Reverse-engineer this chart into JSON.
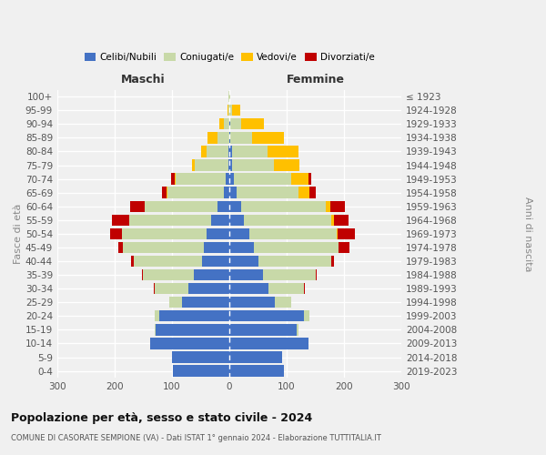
{
  "age_groups_bottom_to_top": [
    "0-4",
    "5-9",
    "10-14",
    "15-19",
    "20-24",
    "25-29",
    "30-34",
    "35-39",
    "40-44",
    "45-49",
    "50-54",
    "55-59",
    "60-64",
    "65-69",
    "70-74",
    "75-79",
    "80-84",
    "85-89",
    "90-94",
    "95-99",
    "100+"
  ],
  "birth_years_bottom_to_top": [
    "2019-2023",
    "2014-2018",
    "2009-2013",
    "2004-2008",
    "1999-2003",
    "1994-1998",
    "1989-1993",
    "1984-1988",
    "1979-1983",
    "1974-1978",
    "1969-1973",
    "1964-1968",
    "1959-1963",
    "1954-1958",
    "1949-1953",
    "1944-1948",
    "1939-1943",
    "1934-1938",
    "1929-1933",
    "1924-1928",
    "≤ 1923"
  ],
  "male": {
    "celibe": [
      98,
      100,
      138,
      128,
      122,
      82,
      72,
      62,
      48,
      44,
      40,
      32,
      20,
      10,
      6,
      2,
      2,
      0,
      0,
      0,
      0
    ],
    "coniugato": [
      0,
      0,
      0,
      2,
      8,
      22,
      58,
      88,
      118,
      142,
      148,
      142,
      128,
      98,
      88,
      58,
      38,
      20,
      10,
      2,
      1
    ],
    "vedovo": [
      0,
      0,
      0,
      0,
      0,
      0,
      0,
      0,
      0,
      0,
      0,
      0,
      0,
      2,
      2,
      5,
      10,
      18,
      8,
      2,
      0
    ],
    "divorziato": [
      0,
      0,
      0,
      0,
      0,
      0,
      2,
      3,
      5,
      8,
      20,
      30,
      25,
      8,
      5,
      0,
      0,
      0,
      0,
      0,
      0
    ]
  },
  "female": {
    "nubile": [
      95,
      92,
      138,
      118,
      130,
      80,
      68,
      58,
      50,
      42,
      35,
      25,
      20,
      12,
      8,
      5,
      4,
      2,
      2,
      0,
      0
    ],
    "coniugata": [
      0,
      0,
      0,
      2,
      10,
      28,
      62,
      92,
      128,
      148,
      152,
      152,
      148,
      108,
      100,
      72,
      62,
      38,
      18,
      4,
      1
    ],
    "vedova": [
      0,
      0,
      0,
      0,
      0,
      0,
      0,
      0,
      0,
      0,
      2,
      5,
      8,
      20,
      30,
      45,
      55,
      55,
      40,
      15,
      1
    ],
    "divorziata": [
      0,
      0,
      0,
      0,
      0,
      0,
      2,
      3,
      5,
      20,
      30,
      25,
      25,
      10,
      5,
      0,
      0,
      0,
      0,
      0,
      0
    ]
  },
  "colors": {
    "celibe": "#4472c4",
    "coniugato": "#c8d9a8",
    "vedovo": "#ffc000",
    "divorziato": "#c00000"
  },
  "title": "Popolazione per età, sesso e stato civile - 2024",
  "subtitle": "COMUNE DI CASORATE SEMPIONE (VA) - Dati ISTAT 1° gennaio 2024 - Elaborazione TUTTITALIA.IT",
  "xlabel_left": "Maschi",
  "xlabel_right": "Femmine",
  "ylabel_left": "Fasce di età",
  "ylabel_right": "Anni di nascita",
  "xlim": 300,
  "bg_color": "#f0f0f0",
  "grid_color": "#ffffff",
  "legend_labels": [
    "Celibi/Nubili",
    "Coniugati/e",
    "Vedovi/e",
    "Divorziati/e"
  ]
}
